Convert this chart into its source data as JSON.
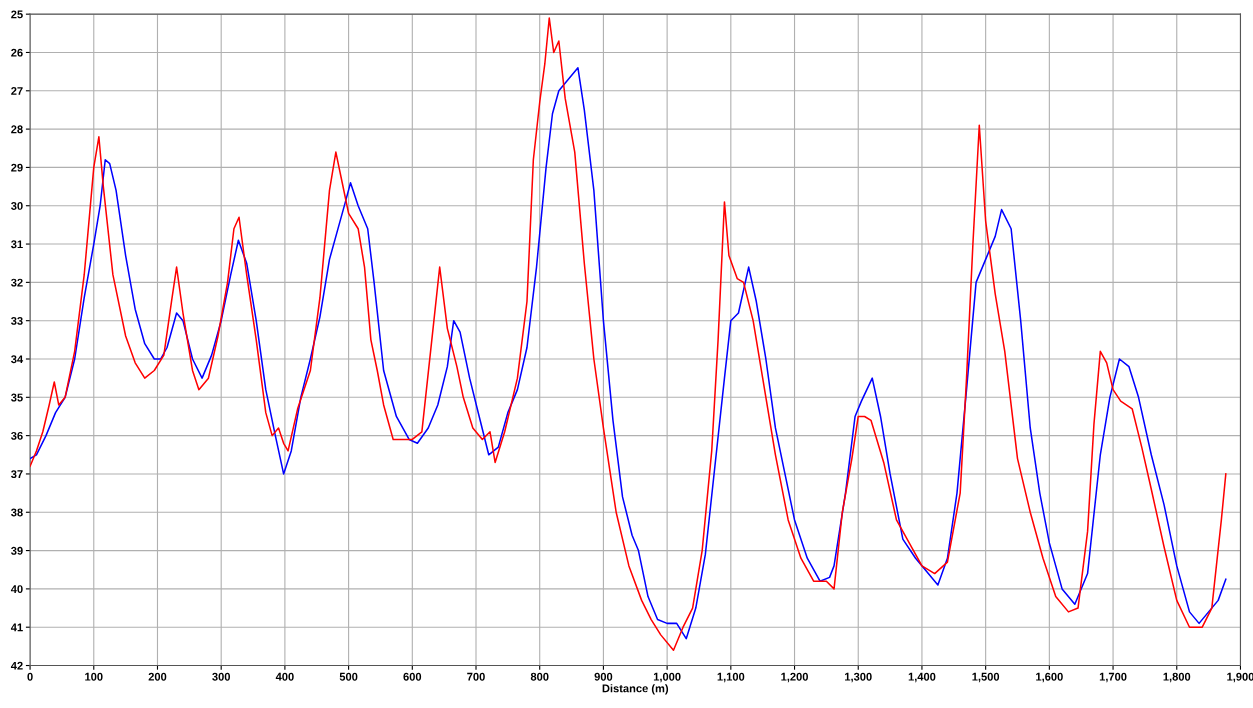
{
  "chart_data": {
    "type": "line",
    "xlabel": "Distance (m)",
    "xlim": [
      0,
      1900
    ],
    "ylim": [
      42,
      25
    ],
    "xticks": [
      0,
      100,
      200,
      300,
      400,
      500,
      600,
      700,
      800,
      900,
      {
        "value": 1000,
        "label": "1,000"
      },
      {
        "value": 1100,
        "label": "1,100"
      },
      {
        "value": 1200,
        "label": "1,200"
      },
      {
        "value": 1300,
        "label": "1,300"
      },
      {
        "value": 1400,
        "label": "1,400"
      },
      {
        "value": 1500,
        "label": "1,500"
      },
      {
        "value": 1600,
        "label": "1,600"
      },
      {
        "value": 1700,
        "label": "1,700"
      },
      {
        "value": 1800,
        "label": "1,800"
      },
      {
        "value": 1900,
        "label": "1,900"
      }
    ],
    "yticks": [
      25,
      26,
      27,
      28,
      29,
      30,
      31,
      32,
      33,
      34,
      35,
      36,
      37,
      38,
      39,
      40,
      41,
      42
    ],
    "grid": true,
    "line_style": "solid",
    "series": [
      {
        "color": "#ff0000",
        "x": [
          0,
          10,
          20,
          30,
          38,
          45,
          55,
          70,
          85,
          100,
          108,
          115,
          130,
          150,
          165,
          180,
          195,
          210,
          222,
          230,
          240,
          255,
          265,
          280,
          295,
          310,
          320,
          328,
          340,
          355,
          370,
          380,
          390,
          398,
          405,
          420,
          440,
          455,
          470,
          480,
          490,
          500,
          515,
          525,
          535,
          545,
          555,
          570,
          585,
          600,
          615,
          630,
          643,
          655,
          670,
          680,
          695,
          710,
          722,
          730,
          745,
          765,
          780,
          790,
          800,
          808,
          815,
          822,
          830,
          840,
          855,
          870,
          885,
          900,
          920,
          940,
          960,
          975,
          990,
          1010,
          1025,
          1040,
          1055,
          1070,
          1080,
          1090,
          1097,
          1110,
          1120,
          1135,
          1150,
          1170,
          1190,
          1210,
          1230,
          1250,
          1262,
          1275,
          1290,
          1300,
          1310,
          1320,
          1340,
          1360,
          1380,
          1400,
          1420,
          1440,
          1460,
          1470,
          1480,
          1490,
          1500,
          1515,
          1530,
          1550,
          1570,
          1590,
          1610,
          1630,
          1645,
          1660,
          1670,
          1680,
          1690,
          1700,
          1712,
          1730,
          1745,
          1760,
          1780,
          1800,
          1820,
          1840,
          1855,
          1870,
          1877
        ],
        "values": [
          36.8,
          36.4,
          35.9,
          35.2,
          34.6,
          35.2,
          35.0,
          33.8,
          31.8,
          29.0,
          28.2,
          29.5,
          31.8,
          33.4,
          34.1,
          34.5,
          34.3,
          33.9,
          32.5,
          31.6,
          32.8,
          34.3,
          34.8,
          34.5,
          33.4,
          32.0,
          30.6,
          30.3,
          31.8,
          33.5,
          35.4,
          36.0,
          35.8,
          36.2,
          36.4,
          35.3,
          34.3,
          32.4,
          29.6,
          28.6,
          29.4,
          30.2,
          30.6,
          31.6,
          33.5,
          34.3,
          35.2,
          36.1,
          36.1,
          36.1,
          35.9,
          33.6,
          31.6,
          33.2,
          34.2,
          35.0,
          35.8,
          36.1,
          35.9,
          36.7,
          35.9,
          34.5,
          32.5,
          28.8,
          27.3,
          26.3,
          25.1,
          26.0,
          25.7,
          27.2,
          28.6,
          31.5,
          34.0,
          35.8,
          38.0,
          39.4,
          40.3,
          40.8,
          41.2,
          41.6,
          41.0,
          40.5,
          39.0,
          36.4,
          33.5,
          29.9,
          31.3,
          31.9,
          32.0,
          33.0,
          34.5,
          36.5,
          38.2,
          39.2,
          39.8,
          39.8,
          40.0,
          38.0,
          36.6,
          35.5,
          35.5,
          35.6,
          36.7,
          38.2,
          38.8,
          39.4,
          39.6,
          39.3,
          37.5,
          34.5,
          31.0,
          27.9,
          30.4,
          32.3,
          33.8,
          36.6,
          38.0,
          39.2,
          40.2,
          40.6,
          40.5,
          38.5,
          35.7,
          33.8,
          34.1,
          34.8,
          35.1,
          35.3,
          36.3,
          37.4,
          38.9,
          40.3,
          41.0,
          41.0,
          40.5,
          38.2,
          37.0
        ]
      },
      {
        "color": "#0000ff",
        "x": [
          0,
          10,
          25,
          40,
          55,
          70,
          85,
          100,
          110,
          118,
          125,
          135,
          150,
          165,
          180,
          195,
          205,
          215,
          230,
          240,
          255,
          270,
          285,
          300,
          315,
          327,
          340,
          355,
          370,
          385,
          398,
          410,
          425,
          440,
          455,
          470,
          485,
          495,
          503,
          515,
          530,
          540,
          555,
          575,
          595,
          608,
          625,
          640,
          655,
          665,
          675,
          690,
          705,
          720,
          735,
          750,
          765,
          780,
          795,
          810,
          820,
          830,
          845,
          860,
          870,
          885,
          900,
          915,
          930,
          945,
          955,
          970,
          985,
          1000,
          1015,
          1030,
          1045,
          1060,
          1075,
          1090,
          1100,
          1112,
          1128,
          1140,
          1155,
          1170,
          1185,
          1200,
          1220,
          1240,
          1255,
          1262,
          1280,
          1295,
          1305,
          1322,
          1335,
          1350,
          1370,
          1390,
          1410,
          1425,
          1440,
          1455,
          1470,
          1485,
          1500,
          1515,
          1525,
          1540,
          1555,
          1570,
          1585,
          1600,
          1620,
          1640,
          1660,
          1680,
          1695,
          1710,
          1725,
          1740,
          1760,
          1780,
          1800,
          1820,
          1835,
          1850,
          1865,
          1877
        ],
        "values": [
          36.6,
          36.5,
          36.0,
          35.4,
          35.0,
          34.0,
          32.4,
          31.0,
          30.0,
          28.8,
          28.9,
          29.6,
          31.3,
          32.7,
          33.6,
          34.0,
          34.0,
          33.7,
          32.8,
          33.0,
          34.0,
          34.5,
          33.9,
          33.0,
          31.8,
          30.9,
          31.5,
          33.0,
          34.8,
          36.0,
          37.0,
          36.4,
          35.0,
          34.0,
          32.9,
          31.4,
          30.5,
          29.9,
          29.4,
          30.0,
          30.6,
          32.0,
          34.3,
          35.5,
          36.1,
          36.2,
          35.8,
          35.2,
          34.2,
          33.0,
          33.3,
          34.5,
          35.5,
          36.5,
          36.3,
          35.4,
          34.8,
          33.7,
          31.6,
          29.0,
          27.6,
          27.0,
          26.7,
          26.4,
          27.5,
          29.6,
          33.0,
          35.6,
          37.6,
          38.6,
          39.0,
          40.2,
          40.8,
          40.9,
          40.9,
          41.3,
          40.5,
          39.1,
          36.8,
          34.5,
          33.0,
          32.8,
          31.6,
          32.5,
          34.0,
          35.8,
          37.0,
          38.2,
          39.2,
          39.8,
          39.7,
          39.4,
          37.5,
          35.5,
          35.1,
          34.5,
          35.5,
          37.0,
          38.7,
          39.2,
          39.6,
          39.9,
          39.2,
          37.5,
          34.8,
          32.0,
          31.4,
          30.8,
          30.1,
          30.6,
          33.0,
          35.8,
          37.5,
          38.8,
          40.0,
          40.4,
          39.6,
          36.5,
          35.0,
          34.0,
          34.2,
          35.0,
          36.5,
          37.8,
          39.4,
          40.6,
          40.9,
          40.6,
          40.3,
          39.75
        ]
      }
    ]
  }
}
